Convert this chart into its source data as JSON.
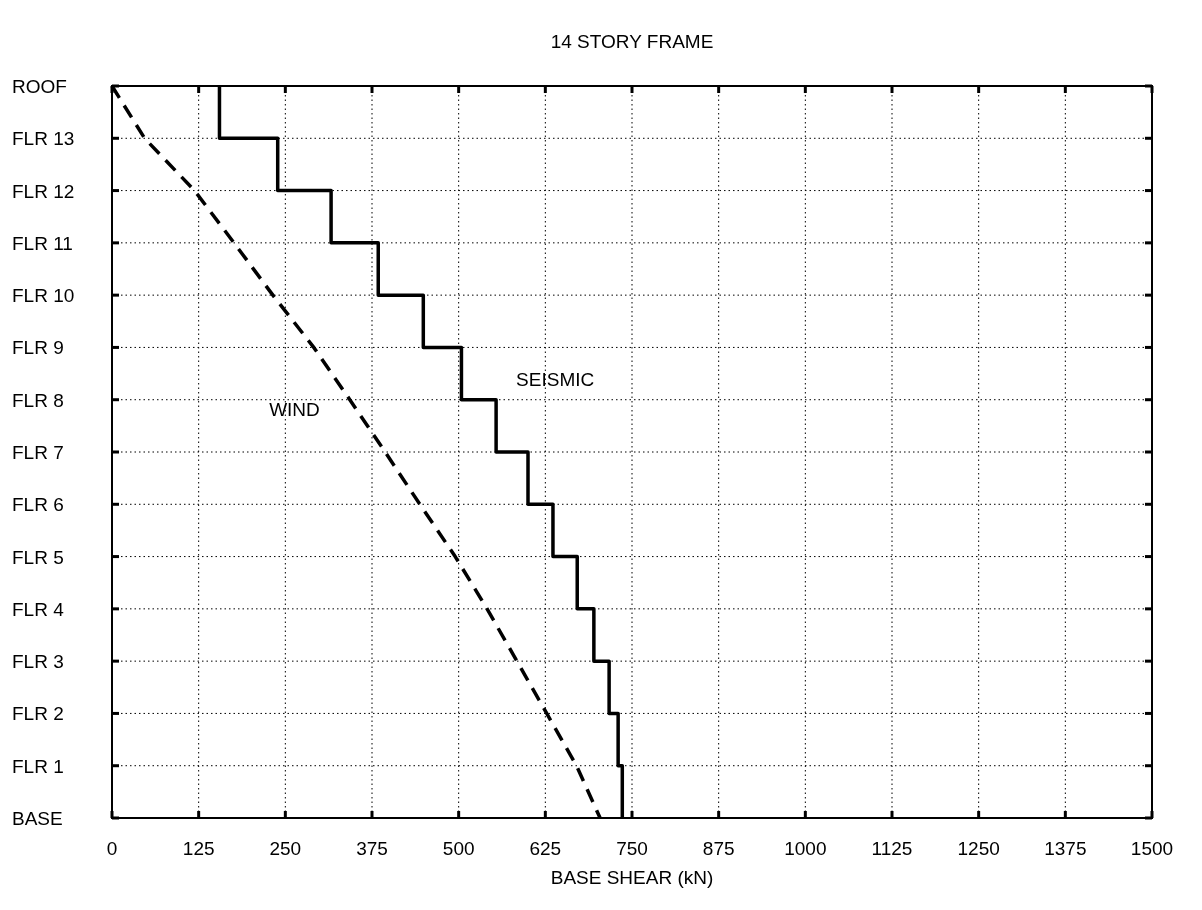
{
  "chart_data": {
    "type": "step",
    "title": "14 STORY FRAME",
    "xlabel": "BASE SHEAR  (kN)",
    "orientation": "horizontal",
    "categories": [
      "ROOF",
      "FLR 13",
      "FLR 12",
      "FLR 11",
      "FLR 10",
      "FLR 9",
      "FLR 8",
      "FLR 7",
      "FLR 6",
      "FLR 5",
      "FLR 4",
      "FLR 3",
      "FLR 2",
      "FLR 1",
      "BASE"
    ],
    "series": [
      {
        "name": "WIND",
        "type": "line",
        "line_style": "dashed",
        "color": "#000000",
        "values": [
          0,
          47,
          119,
          176,
          232,
          291,
          343,
          394,
          444,
          495,
          541,
          584,
          627,
          670,
          704
        ]
      },
      {
        "name": "SEISMIC",
        "line_style": "solid",
        "color": "#000000",
        "values": [
          155,
          239,
          316,
          384,
          449,
          504,
          554,
          600,
          636,
          671,
          695,
          717,
          730,
          736,
          736
        ]
      }
    ],
    "xlim": [
      0,
      1500
    ],
    "xticks": [
      0,
      125,
      250,
      375,
      500,
      625,
      750,
      875,
      1000,
      1125,
      1250,
      1375,
      1500
    ],
    "grid": true
  }
}
